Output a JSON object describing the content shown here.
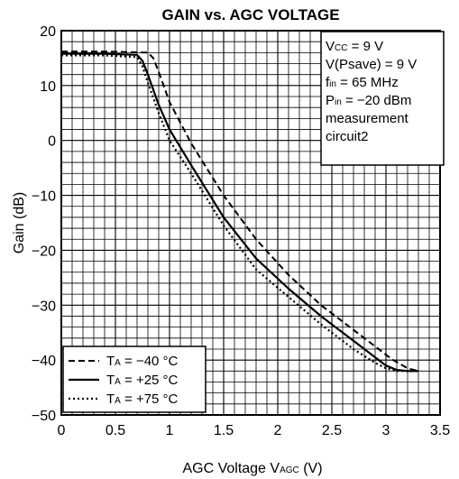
{
  "chart_data": {
    "type": "line",
    "title": "GAIN vs. AGC VOLTAGE",
    "xlabel": {
      "main": "AGC Voltage V",
      "sub": "AGC",
      "unit": " (V)"
    },
    "ylabel": "Gain (dB)",
    "xlim": [
      0,
      3.5
    ],
    "ylim": [
      -50,
      20
    ],
    "x_ticks": [
      "0",
      "0.5",
      "1",
      "1.5",
      "2",
      "2.5",
      "3",
      "3.5"
    ],
    "y_ticks": [
      "20",
      "10",
      "0",
      "−10",
      "−20",
      "−30",
      "−40",
      "−50"
    ],
    "grid": true,
    "minor_grid_x_step": 0.1,
    "minor_grid_y_step": 2,
    "legend_position": "bottom-left",
    "conditions": [
      {
        "main": "V",
        "sub": "CC",
        "rest": " = 9 V"
      },
      {
        "main": "V(Psave) = 9 V",
        "sub": "",
        "rest": ""
      },
      {
        "main": "f",
        "sub": "in",
        "rest": " = 65 MHz"
      },
      {
        "main": "P",
        "sub": "in",
        "rest": " = −20 dBm"
      },
      {
        "main": "measurement",
        "sub": "",
        "rest": ""
      },
      {
        "main": "circuit2",
        "sub": "",
        "rest": ""
      }
    ],
    "series": [
      {
        "name": "Tₐ = −40 °C",
        "legend": {
          "main": "T",
          "sub": "A",
          "rest": " = −40 °C"
        },
        "style": "dashed",
        "x": [
          0,
          0.4,
          0.8,
          0.85,
          0.9,
          1.0,
          1.2,
          1.5,
          1.8,
          2.1,
          2.4,
          2.7,
          2.9,
          3.05,
          3.2,
          3.3
        ],
        "y": [
          16.2,
          16.2,
          16.0,
          15.0,
          12.5,
          7.0,
          -0.5,
          -10.0,
          -18.0,
          -24.5,
          -30.0,
          -34.5,
          -37.5,
          -39.8,
          -41.5,
          -42.0
        ]
      },
      {
        "name": "Tₐ = +25 °C",
        "legend": {
          "main": "T",
          "sub": "A",
          "rest": " = +25 °C"
        },
        "style": "solid",
        "x": [
          0,
          0.4,
          0.7,
          0.75,
          0.8,
          0.9,
          1.0,
          1.2,
          1.5,
          1.8,
          2.1,
          2.4,
          2.7,
          2.9,
          3.0,
          3.1,
          3.2,
          3.3
        ],
        "y": [
          15.8,
          15.8,
          15.6,
          14.5,
          12.0,
          6.5,
          2.0,
          -4.5,
          -14.0,
          -21.5,
          -27.0,
          -32.0,
          -36.5,
          -39.5,
          -41.0,
          -41.8,
          -42.0,
          -42.0
        ]
      },
      {
        "name": "Tₐ = +75 °C",
        "legend": {
          "main": "T",
          "sub": "A",
          "rest": " = +75 °C"
        },
        "style": "dotted",
        "x": [
          0,
          0.4,
          0.7,
          0.75,
          0.8,
          0.9,
          1.0,
          1.2,
          1.5,
          1.8,
          2.1,
          2.4,
          2.7,
          2.9,
          3.0,
          3.1,
          3.2,
          3.3
        ],
        "y": [
          15.5,
          15.5,
          15.2,
          13.5,
          10.5,
          5.0,
          0.0,
          -6.0,
          -15.5,
          -23.5,
          -28.5,
          -33.5,
          -38.0,
          -40.5,
          -41.5,
          -42.0,
          -42.0,
          -42.0
        ]
      }
    ]
  }
}
